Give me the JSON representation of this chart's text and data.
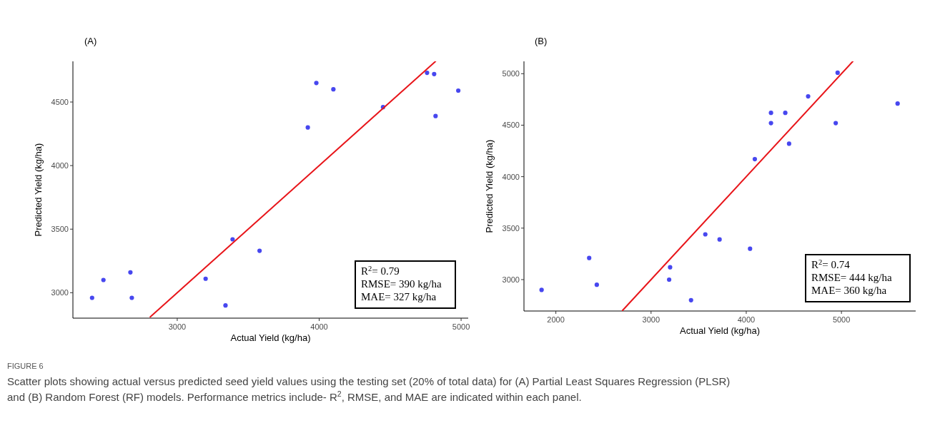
{
  "chart_data": [
    {
      "type": "scatter",
      "title": "(A)",
      "xlabel": "Actual Yield (kg/ha)",
      "ylabel": "Predicted Yield (kg/ha)",
      "xlim": [
        2265,
        5050
      ],
      "ylim": [
        2800,
        4820
      ],
      "xticks": [
        3000,
        4000,
        5000
      ],
      "yticks": [
        3000,
        3500,
        4000,
        4500
      ],
      "grid": false,
      "marker": "circle",
      "series": [
        {
          "color": "#4747ef",
          "x": [
            2400,
            2480,
            2670,
            2680,
            3200,
            3340,
            3390,
            3580,
            3920,
            3980,
            4100,
            4450,
            4760,
            4810,
            4820,
            4980
          ],
          "values": [
            2960,
            3100,
            3160,
            2960,
            3110,
            2900,
            3420,
            3330,
            4300,
            4650,
            4600,
            4460,
            4730,
            4720,
            4390,
            4590
          ]
        },
        {
          "type": "line",
          "color": "#e8161b",
          "line_style": "solid",
          "marker": "none",
          "x": [
            2810,
            4820
          ],
          "values": [
            2810,
            4820
          ]
        }
      ],
      "annotations": [
        "R$^{2}$= 0.79",
        "RMSE= 390 kg/ha",
        "MAE= 327 kg/ha",
        "FIGURE 6",
        "Scatter plots showing actual versus predicted seed yield values using the testing set (20% of total data) for (A) Partial Least Squares Regression (PLSR)",
        "and (B) Random Forest (RF) models. Performance metrics include- R$^{2}$, RMSE, and MAE are indicated within each panel."
      ]
    },
    {
      "type": "scatter",
      "title": "(B)",
      "xlabel": "Actual Yield (kg/ha)",
      "ylabel": "Predicted Yield (kg/ha)",
      "xlim": [
        1665,
        5780
      ],
      "ylim": [
        2695,
        5120
      ],
      "xticks": [
        2000,
        3000,
        4000,
        5000
      ],
      "yticks": [
        3000,
        3500,
        4000,
        4500,
        5000
      ],
      "grid": false,
      "marker": "circle",
      "series": [
        {
          "color": "#4747ef",
          "x": [
            1850,
            2350,
            2430,
            3200,
            3190,
            3420,
            3570,
            3720,
            4040,
            4090,
            4260,
            4260,
            4410,
            4450,
            4650,
            4940,
            4960,
            5590
          ],
          "values": [
            2900,
            3210,
            2950,
            3120,
            3000,
            2800,
            3440,
            3390,
            3300,
            4170,
            4620,
            4520,
            4620,
            4320,
            4780,
            4520,
            5010,
            4710
          ]
        },
        {
          "type": "line",
          "color": "#e8161b",
          "line_style": "solid",
          "marker": "none",
          "x": [
            2700,
            5120
          ],
          "values": [
            2700,
            5120
          ]
        }
      ],
      "annotations": [
        "R$^{2}$= 0.74",
        "RMSE= 444 kg/ha",
        "MAE= 360 kg/ha"
      ]
    }
  ]
}
